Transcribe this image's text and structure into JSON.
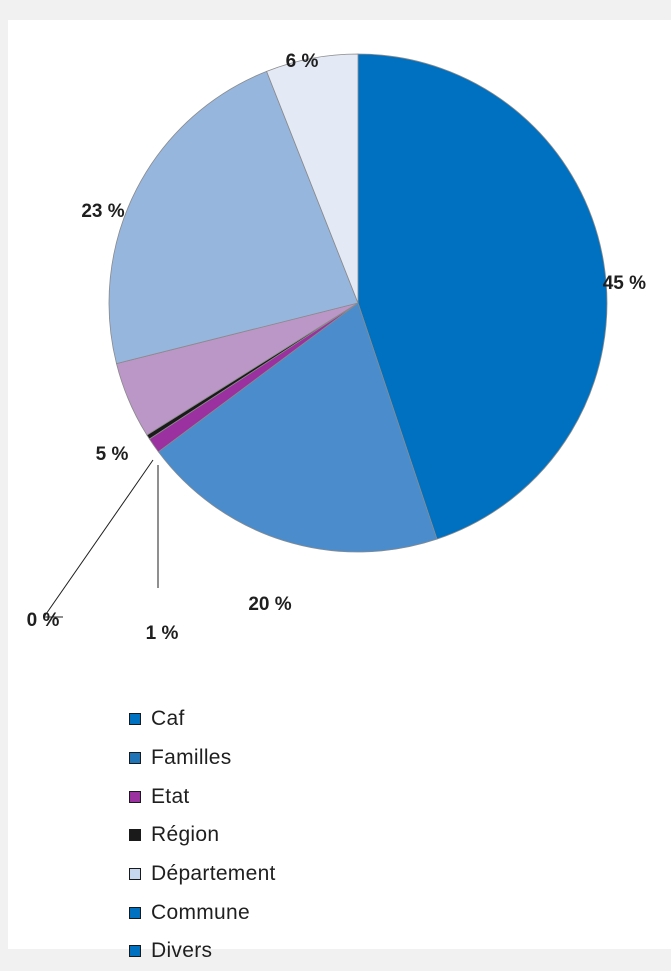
{
  "chart_data": {
    "type": "pie",
    "slices": [
      {
        "name": "Caf",
        "value": 45,
        "label": "45 %",
        "color": "#0070c0"
      },
      {
        "name": "Familles",
        "value": 20,
        "label": "20 %",
        "color": "#4a8ccc"
      },
      {
        "name": "Etat",
        "value": 1,
        "label": "1 %",
        "color": "#9b30a0"
      },
      {
        "name": "Région",
        "value": 0.3,
        "label": "0 %",
        "color": "#1a1a1a"
      },
      {
        "name": "Département",
        "value": 5,
        "label": "5 %",
        "color": "#bb97c8"
      },
      {
        "name": "Commune",
        "value": 23,
        "label": "23 %",
        "color": "#96b6de"
      },
      {
        "name": "Divers",
        "value": 6,
        "label": "6 %",
        "color": "#e3e9f5"
      }
    ],
    "legend": [
      {
        "label": "Caf",
        "color": "#0070c0"
      },
      {
        "label": "Familles",
        "color": "#1f74b8"
      },
      {
        "label": "Etat",
        "color": "#9b30a0"
      },
      {
        "label": "Région",
        "color": "#1a1a1a"
      },
      {
        "label": "Département",
        "color": "#c6d8ef"
      },
      {
        "label": "Commune",
        "color": "#0070c0"
      },
      {
        "label": "Divers",
        "color": "#0070c0"
      }
    ],
    "legend_position": "bottom-left",
    "start_angle": "12 o'clock, clockwise"
  }
}
